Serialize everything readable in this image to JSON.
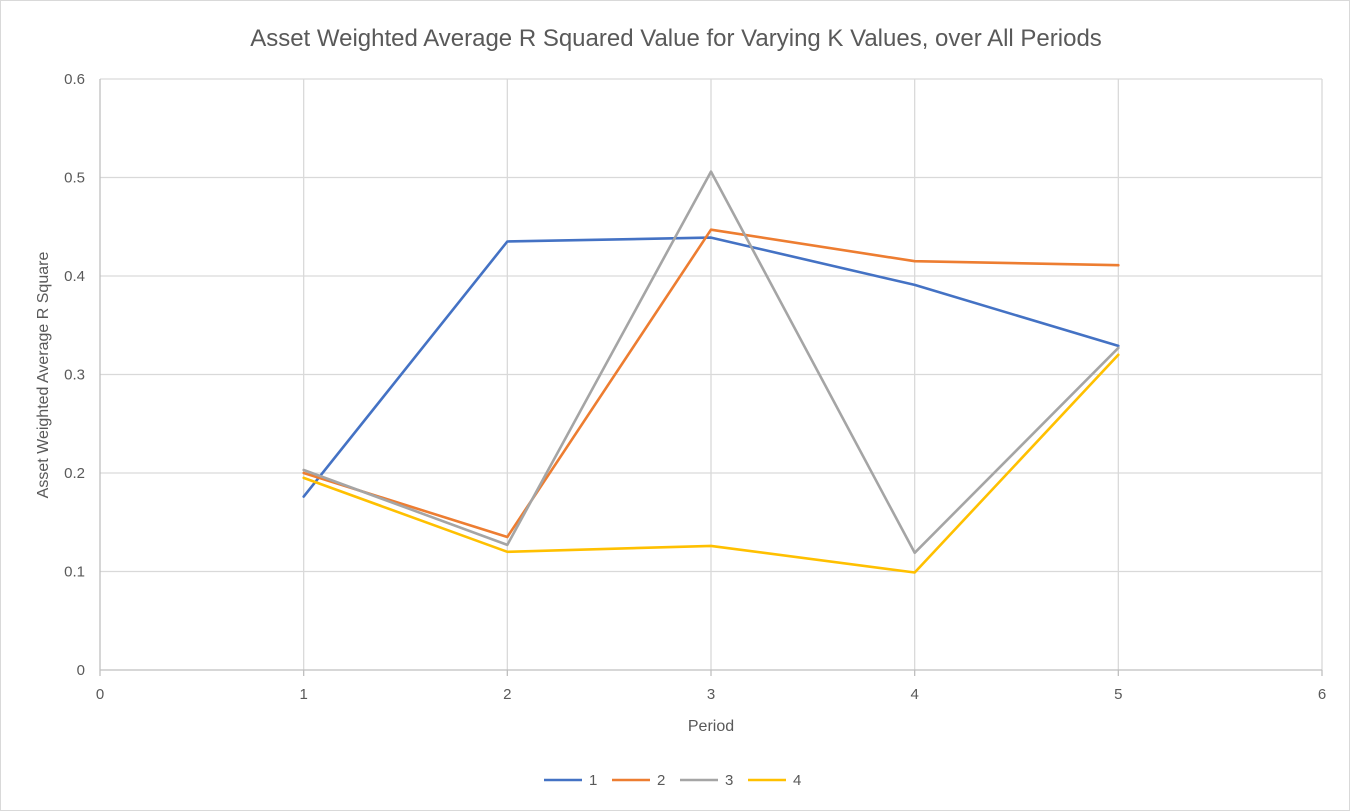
{
  "chart_data": {
    "type": "scatter",
    "title": "Asset Weighted Average R Squared Value for Varying K Values, over All Periods",
    "xlabel": "Period",
    "ylabel": "Asset Weighted Average R Square",
    "xlim": [
      0,
      6
    ],
    "ylim": [
      0,
      0.6
    ],
    "x_ticks": [
      "0",
      "1",
      "2",
      "3",
      "4",
      "5",
      "6"
    ],
    "y_ticks": [
      "0",
      "0.1",
      "0.2",
      "0.3",
      "0.4",
      "0.5",
      "0.6"
    ],
    "grid": true,
    "legend_position": "bottom",
    "series": [
      {
        "name": "1",
        "color": "#4472C4",
        "x": [
          1,
          2,
          3,
          4,
          5
        ],
        "y": [
          0.176,
          0.435,
          0.439,
          0.391,
          0.329
        ]
      },
      {
        "name": "2",
        "color": "#ED7D31",
        "x": [
          1,
          2,
          3,
          4,
          5
        ],
        "y": [
          0.2,
          0.135,
          0.447,
          0.415,
          0.411
        ]
      },
      {
        "name": "3",
        "color": "#A5A5A5",
        "x": [
          1,
          2,
          3,
          4,
          5
        ],
        "y": [
          0.203,
          0.127,
          0.506,
          0.119,
          0.327
        ]
      },
      {
        "name": "4",
        "color": "#FFC000",
        "x": [
          1,
          2,
          3,
          4,
          5
        ],
        "y": [
          0.195,
          0.12,
          0.126,
          0.099,
          0.32
        ]
      }
    ]
  }
}
